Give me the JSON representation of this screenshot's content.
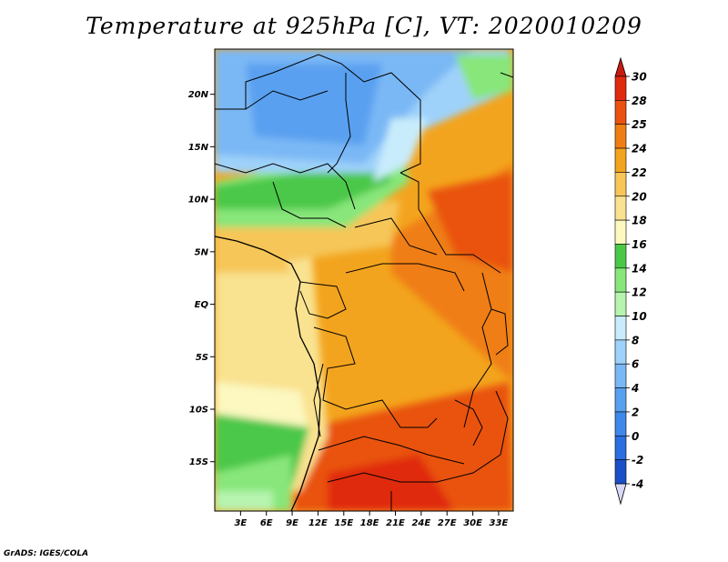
{
  "title": "Temperature at 925hPa [C], VT: 2020010209",
  "footer": "GrADS: IGES/COLA",
  "map": {
    "lon_range": [
      0,
      34.7
    ],
    "lat_range": [
      -19.7,
      24.3
    ],
    "lat_ticks": [
      {
        "value": 20,
        "label": "20N"
      },
      {
        "value": 15,
        "label": "15N"
      },
      {
        "value": 10,
        "label": "10N"
      },
      {
        "value": 5,
        "label": "5N"
      },
      {
        "value": 0,
        "label": "EQ"
      },
      {
        "value": -5,
        "label": "5S"
      },
      {
        "value": -10,
        "label": "10S"
      },
      {
        "value": -15,
        "label": "15S"
      }
    ],
    "lon_ticks": [
      {
        "value": 3,
        "label": "3E"
      },
      {
        "value": 6,
        "label": "6E"
      },
      {
        "value": 9,
        "label": "9E"
      },
      {
        "value": 12,
        "label": "12E"
      },
      {
        "value": 15,
        "label": "15E"
      },
      {
        "value": 18,
        "label": "18E"
      },
      {
        "value": 21,
        "label": "21E"
      },
      {
        "value": 24,
        "label": "24E"
      },
      {
        "value": 27,
        "label": "27E"
      },
      {
        "value": 30,
        "label": "30E"
      },
      {
        "value": 33,
        "label": "33E"
      }
    ]
  },
  "colorbar": {
    "levels": [
      "-4",
      "-2",
      "0",
      "2",
      "4",
      "6",
      "8",
      "10",
      "12",
      "14",
      "16",
      "18",
      "20",
      "22",
      "24",
      "25",
      "28",
      "30"
    ],
    "colors": [
      "#1f2f9e",
      "#1a4fc7",
      "#2a6ee0",
      "#3d88ea",
      "#5aa0f0",
      "#7ab8f5",
      "#9fd2fa",
      "#c8ecfb",
      "#b6f4b0",
      "#88e67a",
      "#4cc848",
      "#fcf8c0",
      "#f9e290",
      "#f6c658",
      "#f3a41e",
      "#ef7e12",
      "#e95210",
      "#e02a10",
      "#c81a10"
    ],
    "over_color": "#c81a10",
    "under_color": "#d8d8f8"
  }
}
